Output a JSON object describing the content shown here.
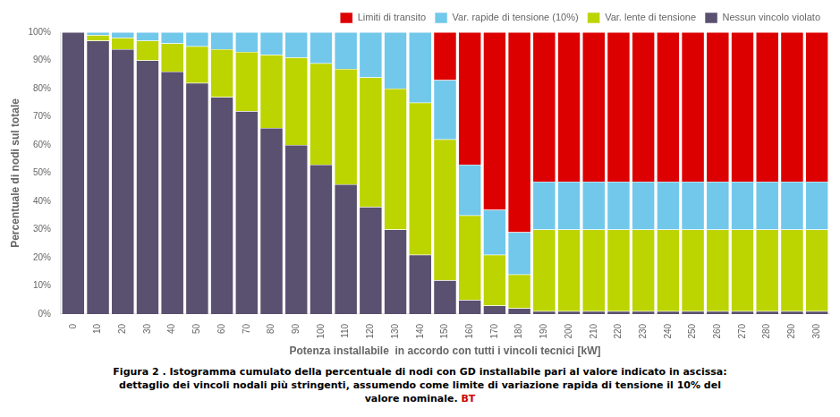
{
  "chart_data": {
    "type": "bar",
    "stacked": true,
    "grid": false,
    "legend": "upper right",
    "categories": [
      "0",
      "10",
      "20",
      "30",
      "40",
      "50",
      "60",
      "70",
      "80",
      "90",
      "100",
      "110",
      "120",
      "130",
      "140",
      "150",
      "160",
      "170",
      "180",
      "190",
      "200",
      "210",
      "220",
      "230",
      "240",
      "250",
      "260",
      "270",
      "280",
      "290",
      "300"
    ],
    "series": [
      {
        "name": "Nessun vincolo violato",
        "color": "#5a5070",
        "values": [
          100,
          97,
          94,
          90,
          86,
          82,
          77,
          72,
          66,
          60,
          53,
          46,
          38,
          30,
          21,
          12,
          5,
          3,
          2,
          1,
          1,
          1,
          1,
          1,
          1,
          1,
          1,
          1,
          1,
          1,
          1
        ]
      },
      {
        "name": "Var. lente di tensione",
        "color": "#bcd400",
        "values": [
          0,
          2,
          4,
          7,
          10,
          13,
          17,
          21,
          26,
          31,
          36,
          41,
          46,
          50,
          54,
          50,
          30,
          18,
          12,
          29,
          29,
          29,
          29,
          29,
          29,
          29,
          29,
          29,
          29,
          29,
          29
        ]
      },
      {
        "name": "Var. rapide di tensione (10%)",
        "color": "#72c8ea",
        "values": [
          0,
          1,
          2,
          3,
          4,
          5,
          6,
          7,
          8,
          9,
          11,
          13,
          16,
          20,
          25,
          21,
          18,
          16,
          15,
          17,
          17,
          17,
          17,
          17,
          17,
          17,
          17,
          17,
          17,
          17,
          17
        ]
      },
      {
        "name": "Limiti di transito",
        "color": "#dd0000",
        "values": [
          0,
          0,
          0,
          0,
          0,
          0,
          0,
          0,
          0,
          0,
          0,
          0,
          0,
          0,
          0,
          17,
          47,
          63,
          71,
          53,
          53,
          53,
          53,
          53,
          53,
          53,
          53,
          53,
          53,
          53,
          53
        ]
      }
    ],
    "x_label": "Potenza installabile  in accordo con tutti i vincoli tecnici [kW]",
    "y_label": "Percentuale di nodi sul totale",
    "ylim": [
      0,
      100
    ],
    "yticks": [
      {
        "value": 0,
        "label": "0%"
      },
      {
        "value": 10,
        "label": "10%"
      },
      {
        "value": 20,
        "label": "20%"
      },
      {
        "value": 30,
        "label": "30%"
      },
      {
        "value": 40,
        "label": "40%"
      },
      {
        "value": 50,
        "label": "50%"
      },
      {
        "value": 60,
        "label": "60%"
      },
      {
        "value": 70,
        "label": "70%"
      },
      {
        "value": 80,
        "label": "80%"
      },
      {
        "value": 90,
        "label": "90%"
      },
      {
        "value": 100,
        "label": "100%"
      }
    ],
    "annotations": [
      {
        "text": "Figura  2 . Istogramma cumulato della percentuale di nodi con GD installabile pari al valore indicato in ascissa:"
      },
      {
        "text": "dettaglio dei vincoli nodali più stringenti, assumendo come limite di variazione rapida di tensione il 10% del"
      },
      {
        "text": "valore nominale."
      },
      {
        "text": "BT",
        "color": "#cc0000"
      }
    ]
  }
}
